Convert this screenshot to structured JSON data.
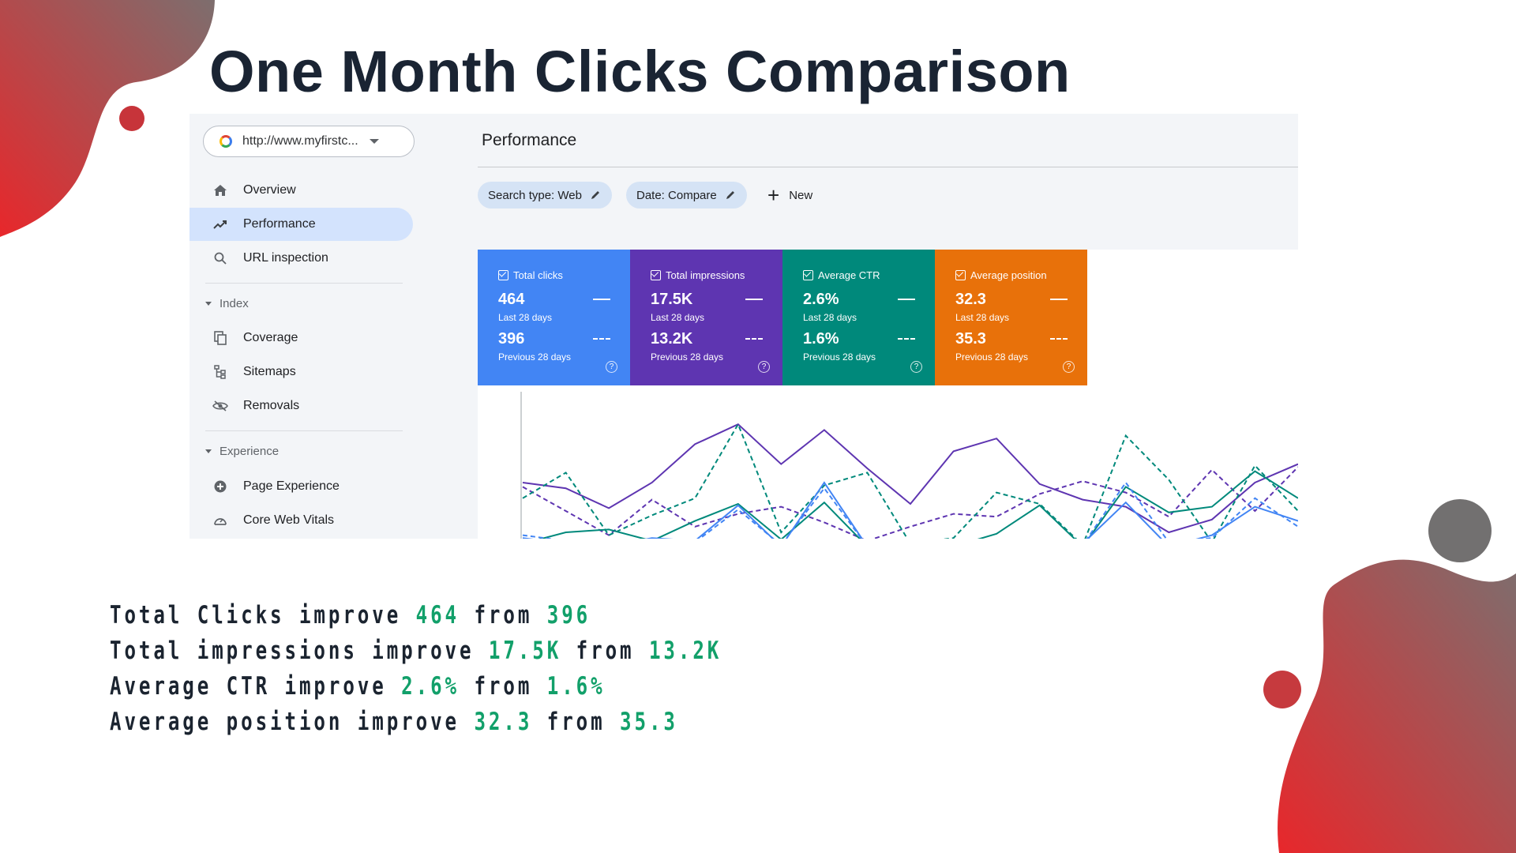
{
  "slide": {
    "title": "One Month Clicks Comparison"
  },
  "sidebar": {
    "property_url": "http://www.myfirstc...",
    "items": [
      {
        "label": "Overview",
        "icon": "home-icon"
      },
      {
        "label": "Performance",
        "icon": "trending-up-icon",
        "active": true
      },
      {
        "label": "URL inspection",
        "icon": "search-icon"
      }
    ],
    "index_section": {
      "label": "Index",
      "items": [
        {
          "label": "Coverage",
          "icon": "copy-icon"
        },
        {
          "label": "Sitemaps",
          "icon": "sitemap-icon"
        },
        {
          "label": "Removals",
          "icon": "eye-off-icon"
        }
      ]
    },
    "experience_section": {
      "label": "Experience",
      "items": [
        {
          "label": "Page Experience",
          "icon": "plus-circle-icon"
        },
        {
          "label": "Core Web Vitals",
          "icon": "speedometer-icon"
        }
      ]
    }
  },
  "header": {
    "title": "Performance",
    "filters": [
      {
        "label": "Search type: Web"
      },
      {
        "label": "Date: Compare"
      }
    ],
    "new_label": "New"
  },
  "metrics": [
    {
      "label": "Total clicks",
      "current": "464",
      "current_period": "Last 28 days",
      "previous": "396",
      "previous_period": "Previous 28 days",
      "color": "#4285f4"
    },
    {
      "label": "Total impressions",
      "current": "17.5K",
      "current_period": "Last 28 days",
      "previous": "13.2K",
      "previous_period": "Previous 28 days",
      "color": "#5e35b1"
    },
    {
      "label": "Average CTR",
      "current": "2.6%",
      "current_period": "Last 28 days",
      "previous": "1.6%",
      "previous_period": "Previous 28 days",
      "color": "#00897b"
    },
    {
      "label": "Average position",
      "current": "32.3",
      "current_period": "Last 28 days",
      "previous": "35.3",
      "previous_period": "Previous 28 days",
      "color": "#e8710a"
    }
  ],
  "summary": [
    {
      "text": "Total Clicks improve",
      "from_word": "from",
      "new_value": "464",
      "old_value": "396"
    },
    {
      "text": "Total impressions improve",
      "from_word": "from",
      "new_value": "17.5K",
      "old_value": "13.2K"
    },
    {
      "text": "Average CTR improve",
      "from_word": "from",
      "new_value": "2.6%",
      "old_value": "1.6%"
    },
    {
      "text": "Average position improve",
      "from_word": "from",
      "new_value": "32.3",
      "old_value": "35.3"
    }
  ],
  "chart_data": {
    "type": "line",
    "series": [
      {
        "values": [
          0.45,
          0.41,
          0.27,
          0.45,
          0.72,
          0.86,
          0.58,
          0.82,
          0.55,
          0.3,
          0.67,
          0.76,
          0.44,
          0.33,
          0.28,
          0.1,
          0.19,
          0.45,
          0.58
        ],
        "color": "#5e35b1",
        "dash": false
      },
      {
        "values": [
          0.42,
          0.25,
          0.08,
          0.33,
          0.14,
          0.23,
          0.28,
          0.17,
          0.04,
          0.14,
          0.23,
          0.21,
          0.37,
          0.46,
          0.38,
          0.21,
          0.54,
          0.25,
          0.56
        ],
        "color": "#5e35b1",
        "dash": true
      },
      {
        "values": [
          0.34,
          0.52,
          0.08,
          0.22,
          0.34,
          0.86,
          0.1,
          0.43,
          0.52,
          0.02,
          0.06,
          0.38,
          0.3,
          0.01,
          0.78,
          0.47,
          0.03,
          0.57,
          0.25
        ],
        "color": "#00897b",
        "dash": true
      },
      {
        "values": [
          0.02,
          0.1,
          0.12,
          0.04,
          0.18,
          0.3,
          0.05,
          0.31,
          0.0,
          0.04,
          0.0,
          0.09,
          0.29,
          0.0,
          0.42,
          0.24,
          0.28,
          0.53,
          0.34
        ],
        "color": "#00897b",
        "dash": false
      },
      {
        "values": [
          0.06,
          0.02,
          0.0,
          0.06,
          0.04,
          0.29,
          0.0,
          0.45,
          0.0,
          0.05,
          0.0,
          0.0,
          0.02,
          0.02,
          0.31,
          0.0,
          0.08,
          0.28,
          0.18
        ],
        "color": "#4285f4",
        "dash": false
      },
      {
        "values": [
          0.08,
          0.04,
          0.02,
          0.02,
          0.03,
          0.26,
          0.01,
          0.41,
          0.0,
          0.03,
          0.01,
          0.0,
          0.01,
          0.01,
          0.45,
          0.03,
          0.06,
          0.34,
          0.14
        ],
        "color": "#4285f4",
        "dash": true
      }
    ]
  }
}
